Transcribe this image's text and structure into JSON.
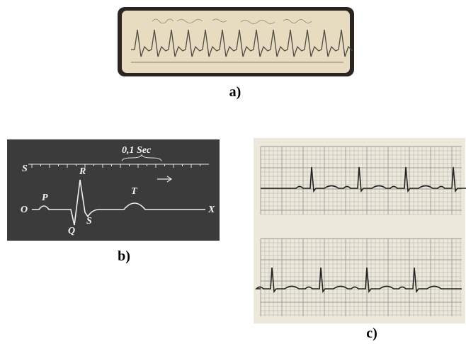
{
  "panels": [
    {
      "label": "a)"
    },
    {
      "label": "b)",
      "annotations": [
        "S",
        "0,1 Sec",
        "R",
        "P",
        "T",
        "O",
        "X",
        "Q",
        "S"
      ]
    },
    {
      "label": "c)"
    }
  ]
}
